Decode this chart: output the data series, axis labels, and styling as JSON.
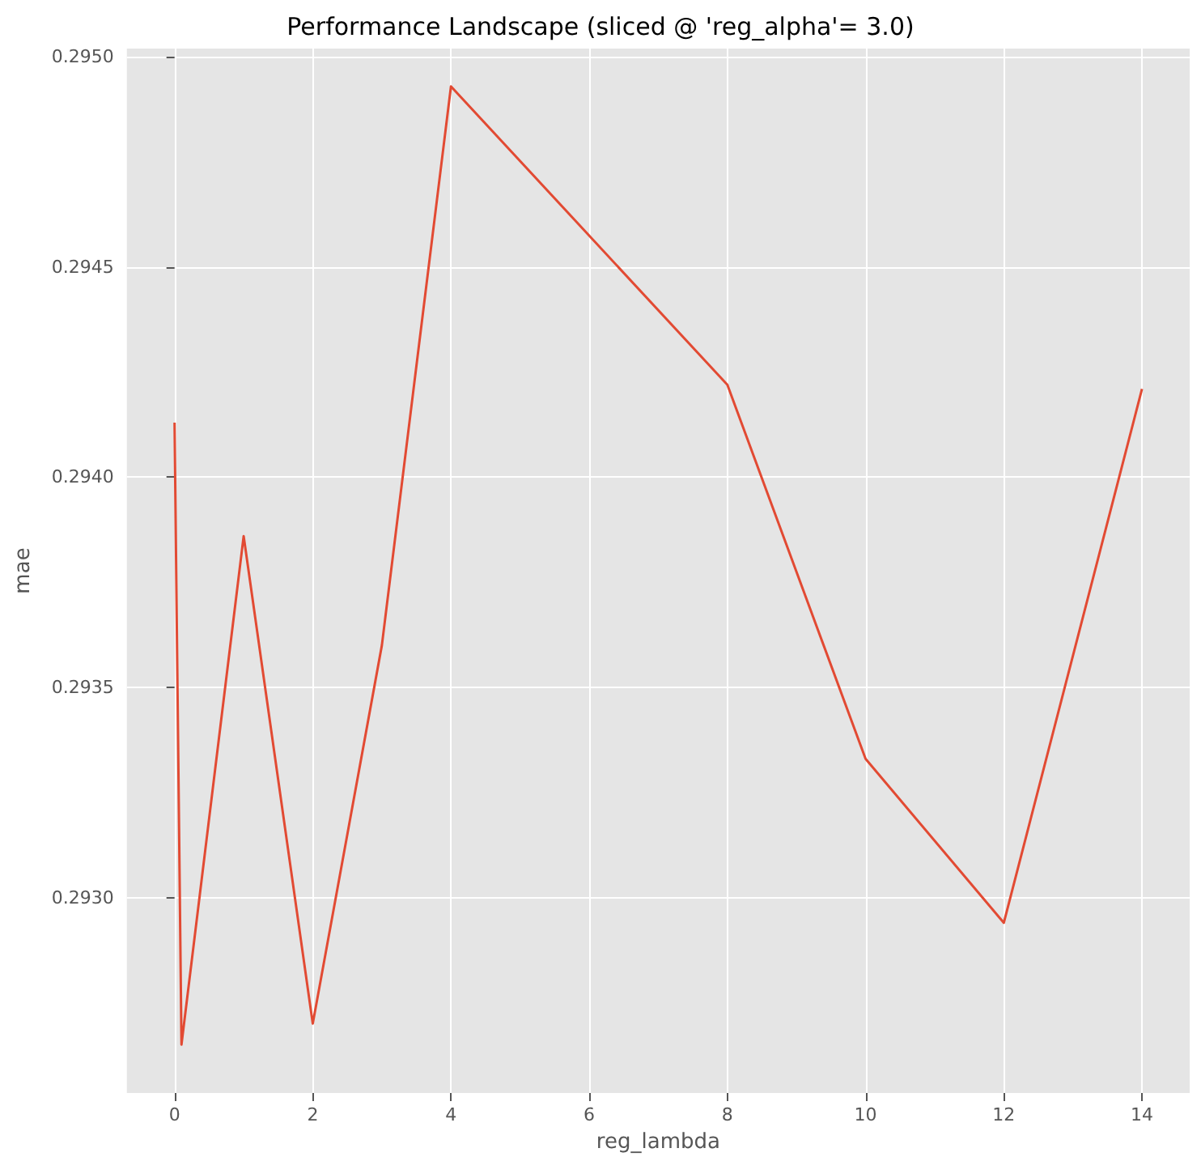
{
  "chart_data": {
    "type": "line",
    "title": "Performance Landscape (sliced @ 'reg_alpha'= 3.0)",
    "xlabel": "reg_lambda",
    "ylabel": "mae",
    "x": [
      0,
      0.1,
      1,
      2,
      3,
      4,
      8,
      10,
      12,
      14
    ],
    "series": [
      {
        "color": "#e24a33",
        "values": [
          0.29413,
          0.29265,
          0.29386,
          0.2927,
          0.2936,
          0.29493,
          0.29422,
          0.29333,
          0.29294,
          0.29421
        ]
      }
    ],
    "xlim": [
      -0.69,
      14.69
    ],
    "xticks": [
      0,
      2,
      4,
      6,
      8,
      10,
      12,
      14
    ],
    "ylim": [
      0.292535,
      0.29502
    ],
    "yticks": [
      {
        "value": 0.293,
        "label": "0.2930"
      },
      {
        "value": 0.2935,
        "label": "0.2935"
      },
      {
        "value": 0.294,
        "label": "0.2940"
      },
      {
        "value": 0.2945,
        "label": "0.2945"
      },
      {
        "value": 0.295,
        "label": "0.2950"
      }
    ],
    "grid": true,
    "marker": "none",
    "line_style": "solid"
  }
}
